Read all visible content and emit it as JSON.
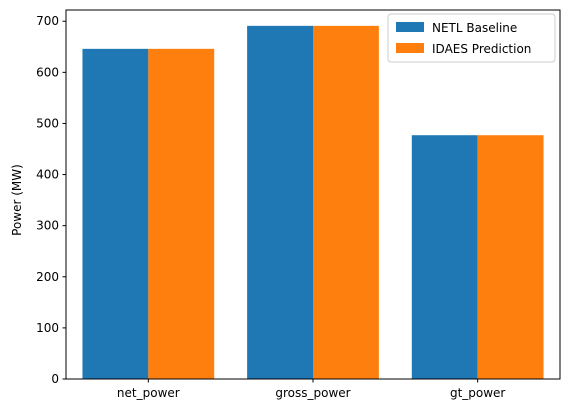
{
  "chart_data": {
    "type": "bar",
    "title": "",
    "xlabel": "",
    "ylabel": "Power (MW)",
    "categories": [
      "net_power",
      "gross_power",
      "gt_power"
    ],
    "series": [
      {
        "name": "NETL Baseline",
        "color": "#1f77b4",
        "values": [
          646,
          691,
          477
        ]
      },
      {
        "name": "IDAES Prediction",
        "color": "#ff7f0e",
        "values": [
          646,
          691,
          477
        ]
      }
    ],
    "ylim": [
      0,
      722
    ],
    "yticks": [
      0,
      100,
      200,
      300,
      400,
      500,
      600,
      700
    ],
    "grid": false,
    "legend_position": "top-right"
  }
}
